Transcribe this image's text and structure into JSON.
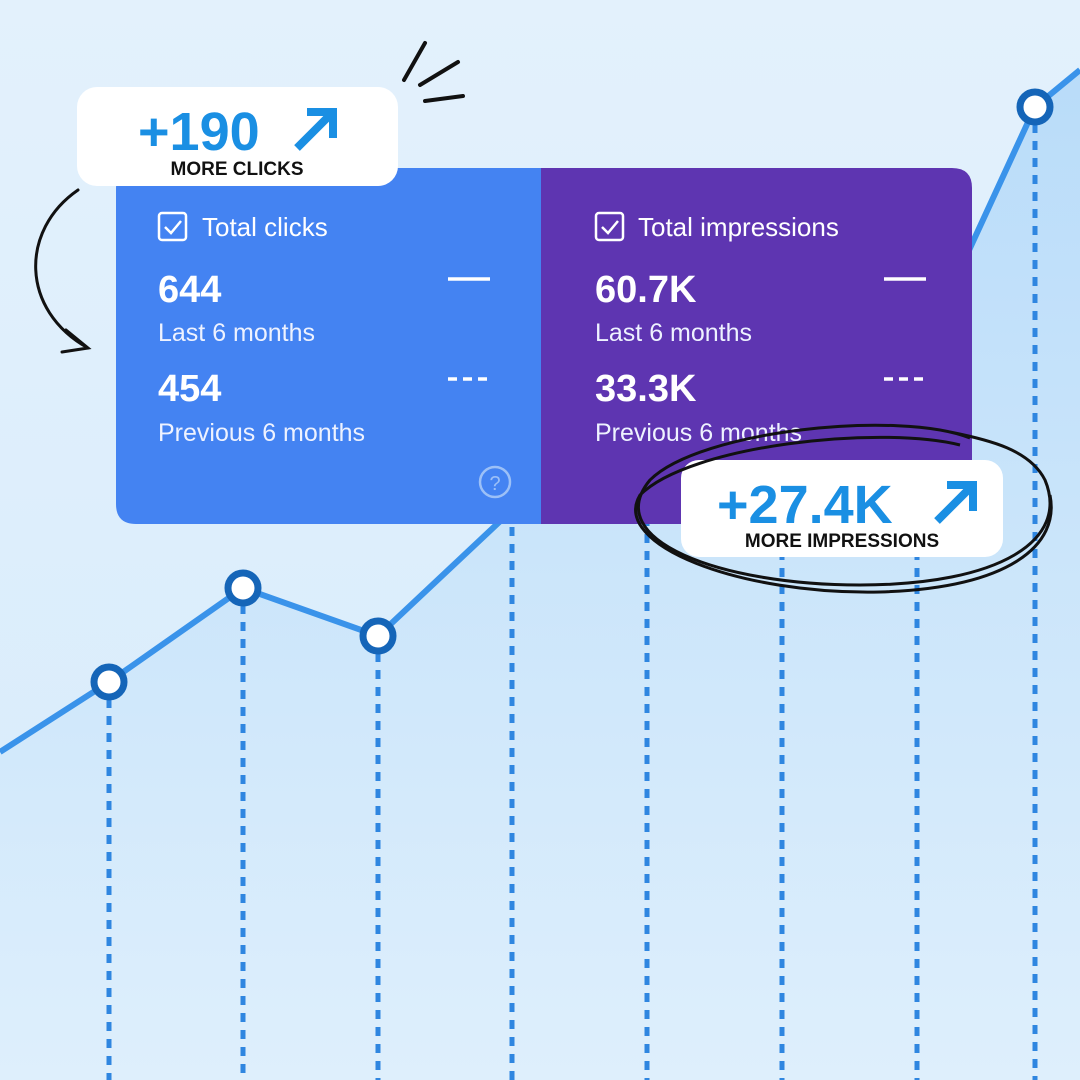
{
  "callouts": [
    {
      "value": "+190",
      "label": "MORE CLICKS"
    },
    {
      "value": "+27.4K",
      "label": "MORE IMPRESSIONS"
    }
  ],
  "metrics": [
    {
      "title": "Total clicks",
      "current": "644",
      "current_label": "Last 6 months",
      "previous": "454",
      "previous_label": "Previous 6 months"
    },
    {
      "title": "Total impressions",
      "current": "60.7K",
      "current_label": "Last 6 months",
      "previous": "33.3K",
      "previous_label": "Previous 6 months"
    }
  ]
}
